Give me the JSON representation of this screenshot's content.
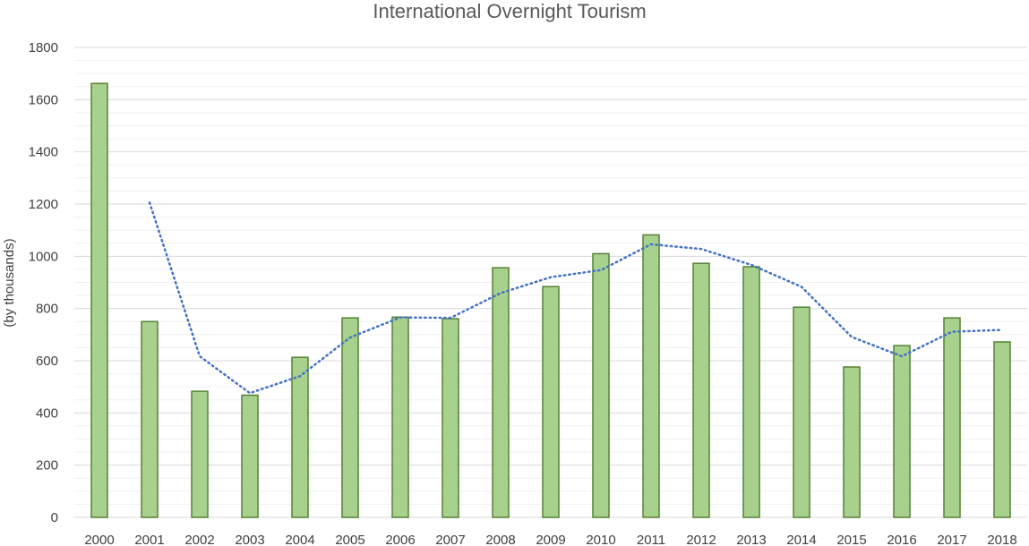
{
  "chart_data": {
    "type": "bar",
    "title": "International Overnight Tourism",
    "xlabel": "",
    "ylabel": "(by thousands)",
    "ylim": [
      0,
      1800
    ],
    "yticks": [
      0,
      200,
      400,
      600,
      800,
      1000,
      1200,
      1400,
      1600,
      1800
    ],
    "minor_gridline_step": 50,
    "grid": true,
    "legend": "none",
    "categories": [
      "2000",
      "2001",
      "2002",
      "2003",
      "2004",
      "2005",
      "2006",
      "2007",
      "2008",
      "2009",
      "2010",
      "2011",
      "2012",
      "2013",
      "2014",
      "2015",
      "2016",
      "2017",
      "2018"
    ],
    "series": [
      {
        "type": "bar",
        "values": [
          1662,
          750,
          483,
          468,
          613,
          764,
          767,
          761,
          956,
          884,
          1010,
          1082,
          973,
          960,
          805,
          576,
          658,
          764,
          672
        ]
      },
      {
        "type": "line",
        "style": "dotted",
        "trendline": "2-period moving average",
        "values": [
          null,
          1206,
          617,
          476,
          541,
          689,
          766,
          764,
          859,
          920,
          947,
          1046,
          1028,
          967,
          883,
          691,
          617,
          711,
          718
        ]
      }
    ],
    "colors": {
      "bar_fill": "#a9d18e",
      "bar_stroke": "#548235",
      "trend_line": "#4472c4",
      "major_grid": "#d9d9d9",
      "minor_grid": "#f0f0f0",
      "title": "#595959",
      "tick_text": "#404040"
    }
  }
}
